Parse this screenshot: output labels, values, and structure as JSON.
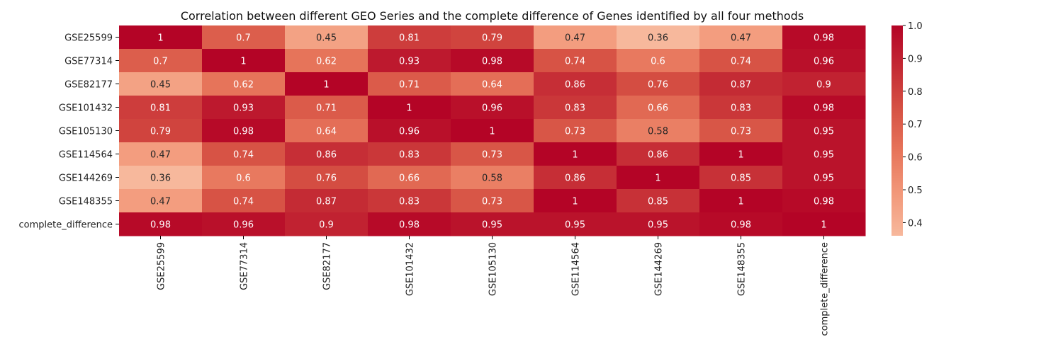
{
  "chart_data": {
    "type": "heatmap",
    "title": "Correlation between different GEO Series and the complete difference of Genes identified by all four methods",
    "xlabel": "",
    "ylabel": "",
    "row_labels": [
      "GSE25599",
      "GSE77314",
      "GSE82177",
      "GSE101432",
      "GSE105130",
      "GSE114564",
      "GSE144269",
      "GSE148355",
      "complete_difference"
    ],
    "col_labels": [
      "GSE25599",
      "GSE77314",
      "GSE82177",
      "GSE101432",
      "GSE105130",
      "GSE114564",
      "GSE144269",
      "GSE148355",
      "complete_difference"
    ],
    "values": [
      [
        1,
        0.7,
        0.45,
        0.81,
        0.79,
        0.47,
        0.36,
        0.47,
        0.98
      ],
      [
        0.7,
        1,
        0.62,
        0.93,
        0.98,
        0.74,
        0.6,
        0.74,
        0.96
      ],
      [
        0.45,
        0.62,
        1,
        0.71,
        0.64,
        0.86,
        0.76,
        0.87,
        0.9
      ],
      [
        0.81,
        0.93,
        0.71,
        1,
        0.96,
        0.83,
        0.66,
        0.83,
        0.98
      ],
      [
        0.79,
        0.98,
        0.64,
        0.96,
        1,
        0.73,
        0.58,
        0.73,
        0.95
      ],
      [
        0.47,
        0.74,
        0.86,
        0.83,
        0.73,
        1,
        0.86,
        1,
        0.95
      ],
      [
        0.36,
        0.6,
        0.76,
        0.66,
        0.58,
        0.86,
        1,
        0.85,
        0.95
      ],
      [
        0.47,
        0.74,
        0.87,
        0.83,
        0.73,
        1,
        0.85,
        1,
        0.98
      ],
      [
        0.98,
        0.96,
        0.9,
        0.98,
        0.95,
        0.95,
        0.95,
        0.98,
        1
      ]
    ],
    "vmin": 0.36,
    "vmax": 1.0,
    "colormap": "coolwarm (upper half)",
    "colorbar_ticks": [
      0.4,
      0.5,
      0.6,
      0.7,
      0.8,
      0.9,
      1.0
    ],
    "colorbar_tick_labels": [
      "0.4",
      "0.5",
      "0.6",
      "0.7",
      "0.8",
      "0.9",
      "1.0"
    ],
    "grid": false,
    "legend": "colorbar right",
    "colors": {
      "low": "#f7b89c",
      "high": "#b40426",
      "text_dark": "#262626",
      "text_light": "#ffffff"
    }
  }
}
